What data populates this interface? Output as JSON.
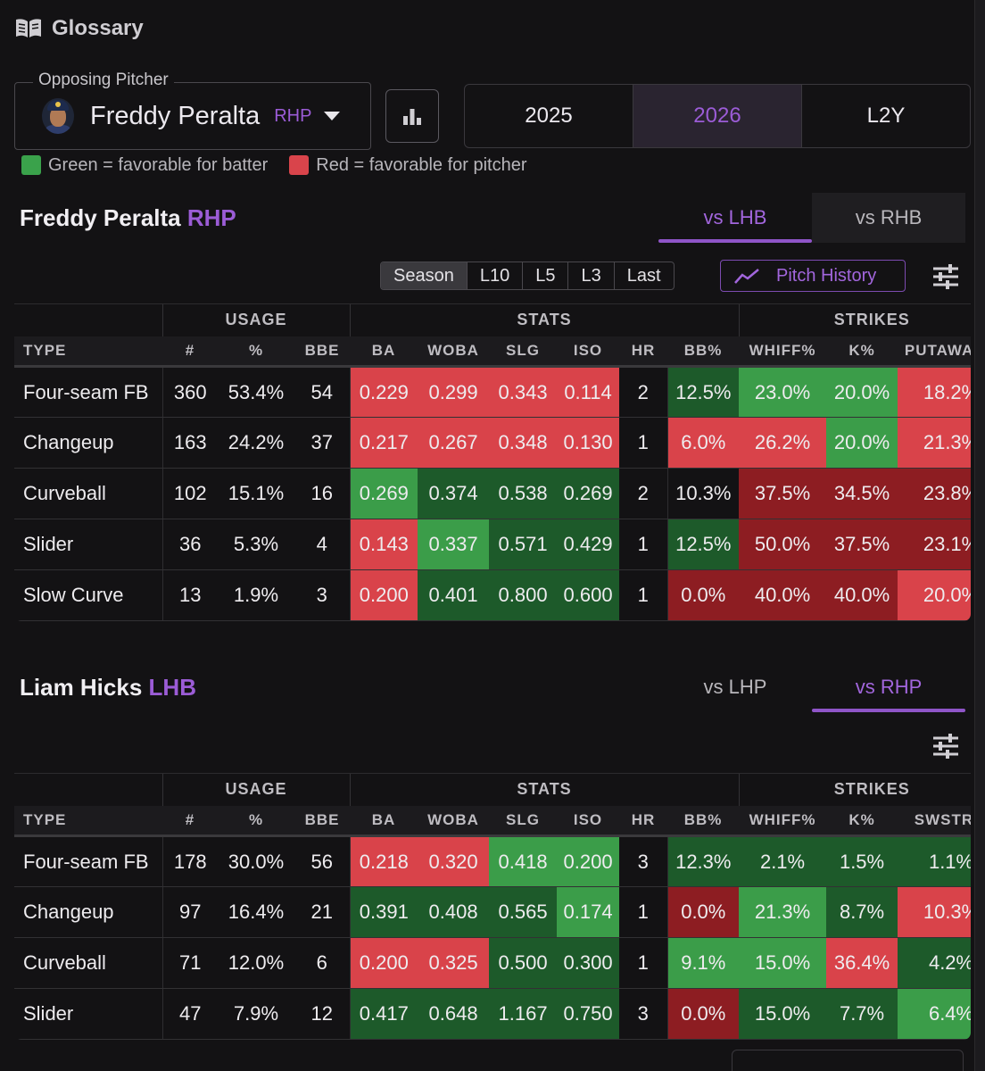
{
  "glossary": {
    "label": "Glossary",
    "icon": "book-icon"
  },
  "pitcher_select": {
    "legend": "Opposing Pitcher",
    "name": "Freddy Peralta",
    "hand": "RHP"
  },
  "years": [
    "2025",
    "2026",
    "L2Y"
  ],
  "active_year": "2026",
  "legend": {
    "green": "Green = favorable for batter",
    "red": "Red = favorable for pitcher"
  },
  "colors": {
    "accent": "#9b5cd6",
    "fav_batter": "#3aa24b",
    "fav_pitcher": "#d9444b"
  },
  "pitcher_section": {
    "name": "Freddy Peralta",
    "hand": "RHP",
    "tabs": [
      "vs LHB",
      "vs RHB"
    ],
    "active_tab": "vs LHB",
    "ranges": [
      "Season",
      "L10",
      "L5",
      "L3",
      "Last"
    ],
    "active_range": "Season",
    "pitch_history": "Pitch History",
    "groups": [
      "USAGE",
      "STATS",
      "STRIKES"
    ],
    "columns": [
      "TYPE",
      "#",
      "%",
      "BBE",
      "BA",
      "WOBA",
      "SLG",
      "ISO",
      "HR",
      "BB%",
      "WHIFF%",
      "K%",
      "PUTAWAY%"
    ],
    "rows": [
      {
        "cells": [
          "Four-seam FB",
          "360",
          "53.4%",
          "54",
          "0.229",
          "0.299",
          "0.343",
          "0.114",
          "2",
          "12.5%",
          "23.0%",
          "20.0%",
          "18.2%"
        ],
        "shades": [
          "n",
          "n",
          "n",
          "n",
          "r1",
          "r1",
          "r1",
          "r1",
          "n",
          "g2",
          "g1",
          "g1",
          "r1"
        ]
      },
      {
        "cells": [
          "Changeup",
          "163",
          "24.2%",
          "37",
          "0.217",
          "0.267",
          "0.348",
          "0.130",
          "1",
          "6.0%",
          "26.2%",
          "20.0%",
          "21.3%"
        ],
        "shades": [
          "n",
          "n",
          "n",
          "n",
          "r1",
          "r1",
          "r1",
          "r1",
          "n",
          "r1",
          "r1",
          "g1",
          "r1"
        ]
      },
      {
        "cells": [
          "Curveball",
          "102",
          "15.1%",
          "16",
          "0.269",
          "0.374",
          "0.538",
          "0.269",
          "2",
          "10.3%",
          "37.5%",
          "34.5%",
          "23.8%"
        ],
        "shades": [
          "n",
          "n",
          "n",
          "n",
          "g1",
          "g2",
          "g2",
          "g2",
          "n",
          "n",
          "r2",
          "r2",
          "r2"
        ]
      },
      {
        "cells": [
          "Slider",
          "36",
          "5.3%",
          "4",
          "0.143",
          "0.337",
          "0.571",
          "0.429",
          "1",
          "12.5%",
          "50.0%",
          "37.5%",
          "23.1%"
        ],
        "shades": [
          "n",
          "n",
          "n",
          "n",
          "r1",
          "g1",
          "g2",
          "g2",
          "n",
          "g2",
          "r2",
          "r2",
          "r2"
        ]
      },
      {
        "cells": [
          "Slow Curve",
          "13",
          "1.9%",
          "3",
          "0.200",
          "0.401",
          "0.800",
          "0.600",
          "1",
          "0.0%",
          "40.0%",
          "40.0%",
          "20.0%"
        ],
        "shades": [
          "n",
          "n",
          "n",
          "n",
          "r1",
          "g2",
          "g2",
          "g2",
          "n",
          "r2",
          "r2",
          "r2",
          "r1"
        ]
      }
    ]
  },
  "batter_section": {
    "name": "Liam Hicks",
    "hand": "LHB",
    "tabs": [
      "vs LHP",
      "vs RHP"
    ],
    "active_tab": "vs RHP",
    "groups": [
      "USAGE",
      "STATS",
      "STRIKES"
    ],
    "columns": [
      "TYPE",
      "#",
      "%",
      "BBE",
      "BA",
      "WOBA",
      "SLG",
      "ISO",
      "HR",
      "BB%",
      "WHIFF%",
      "K%",
      "SWSTR%"
    ],
    "rows": [
      {
        "cells": [
          "Four-seam FB",
          "178",
          "30.0%",
          "56",
          "0.218",
          "0.320",
          "0.418",
          "0.200",
          "3",
          "12.3%",
          "2.1%",
          "1.5%",
          "1.1%"
        ],
        "shades": [
          "n",
          "n",
          "n",
          "n",
          "r1",
          "r1",
          "g1",
          "g1",
          "n",
          "g2",
          "g2",
          "g2",
          "g2"
        ]
      },
      {
        "cells": [
          "Changeup",
          "97",
          "16.4%",
          "21",
          "0.391",
          "0.408",
          "0.565",
          "0.174",
          "1",
          "0.0%",
          "21.3%",
          "8.7%",
          "10.3%"
        ],
        "shades": [
          "n",
          "n",
          "n",
          "n",
          "g2",
          "g2",
          "g2",
          "g1",
          "n",
          "r2",
          "g1",
          "g2",
          "r1"
        ]
      },
      {
        "cells": [
          "Curveball",
          "71",
          "12.0%",
          "6",
          "0.200",
          "0.325",
          "0.500",
          "0.300",
          "1",
          "9.1%",
          "15.0%",
          "36.4%",
          "4.2%"
        ],
        "shades": [
          "n",
          "n",
          "n",
          "n",
          "r1",
          "r1",
          "g2",
          "g2",
          "n",
          "g1",
          "g1",
          "r1",
          "g2"
        ]
      },
      {
        "cells": [
          "Slider",
          "47",
          "7.9%",
          "12",
          "0.417",
          "0.648",
          "1.167",
          "0.750",
          "3",
          "0.0%",
          "15.0%",
          "7.7%",
          "6.4%"
        ],
        "shades": [
          "n",
          "n",
          "n",
          "n",
          "g2",
          "g2",
          "g2",
          "g2",
          "n",
          "r2",
          "g2",
          "g2",
          "g1"
        ]
      }
    ]
  }
}
